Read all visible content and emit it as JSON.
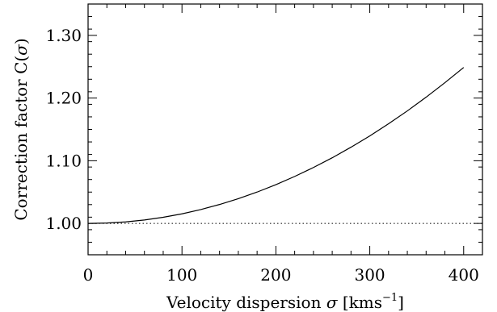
{
  "chart_data": {
    "type": "line",
    "title": "",
    "xlabel": {
      "prefix": "Velocity dispersion ",
      "symbol": "σ",
      "unit_open": " [kms",
      "unit_exp": "−1",
      "unit_close": "]"
    },
    "ylabel": {
      "prefix": "Correction factor C(",
      "symbol": "σ",
      "suffix": ")"
    },
    "xlim": [
      0,
      420
    ],
    "ylim": [
      0.95,
      1.35
    ],
    "x_ticks": [
      0,
      100,
      200,
      300,
      400
    ],
    "x_tick_labels": [
      "0",
      "100",
      "200",
      "300",
      "400"
    ],
    "y_ticks": [
      1.0,
      1.1,
      1.2,
      1.3
    ],
    "y_tick_labels": [
      "1.00",
      "1.10",
      "1.20",
      "1.30"
    ],
    "series": [
      {
        "style": "solid",
        "color": "#000000",
        "x": [
          0,
          20,
          40,
          60,
          80,
          100,
          120,
          140,
          160,
          180,
          200,
          220,
          240,
          260,
          280,
          300,
          320,
          340,
          360,
          380,
          400
        ],
        "y": [
          1.0,
          1.0006,
          1.0024,
          1.0055,
          1.0098,
          1.0153,
          1.0221,
          1.0302,
          1.0395,
          1.05,
          1.0618,
          1.0749,
          1.0892,
          1.1047,
          1.1216,
          1.1396,
          1.159,
          1.1795,
          1.2014,
          1.2245,
          1.2488
        ]
      },
      {
        "style": "dotted",
        "color": "#000000",
        "x": [
          0,
          420
        ],
        "y": [
          1.0,
          1.0
        ]
      }
    ]
  }
}
